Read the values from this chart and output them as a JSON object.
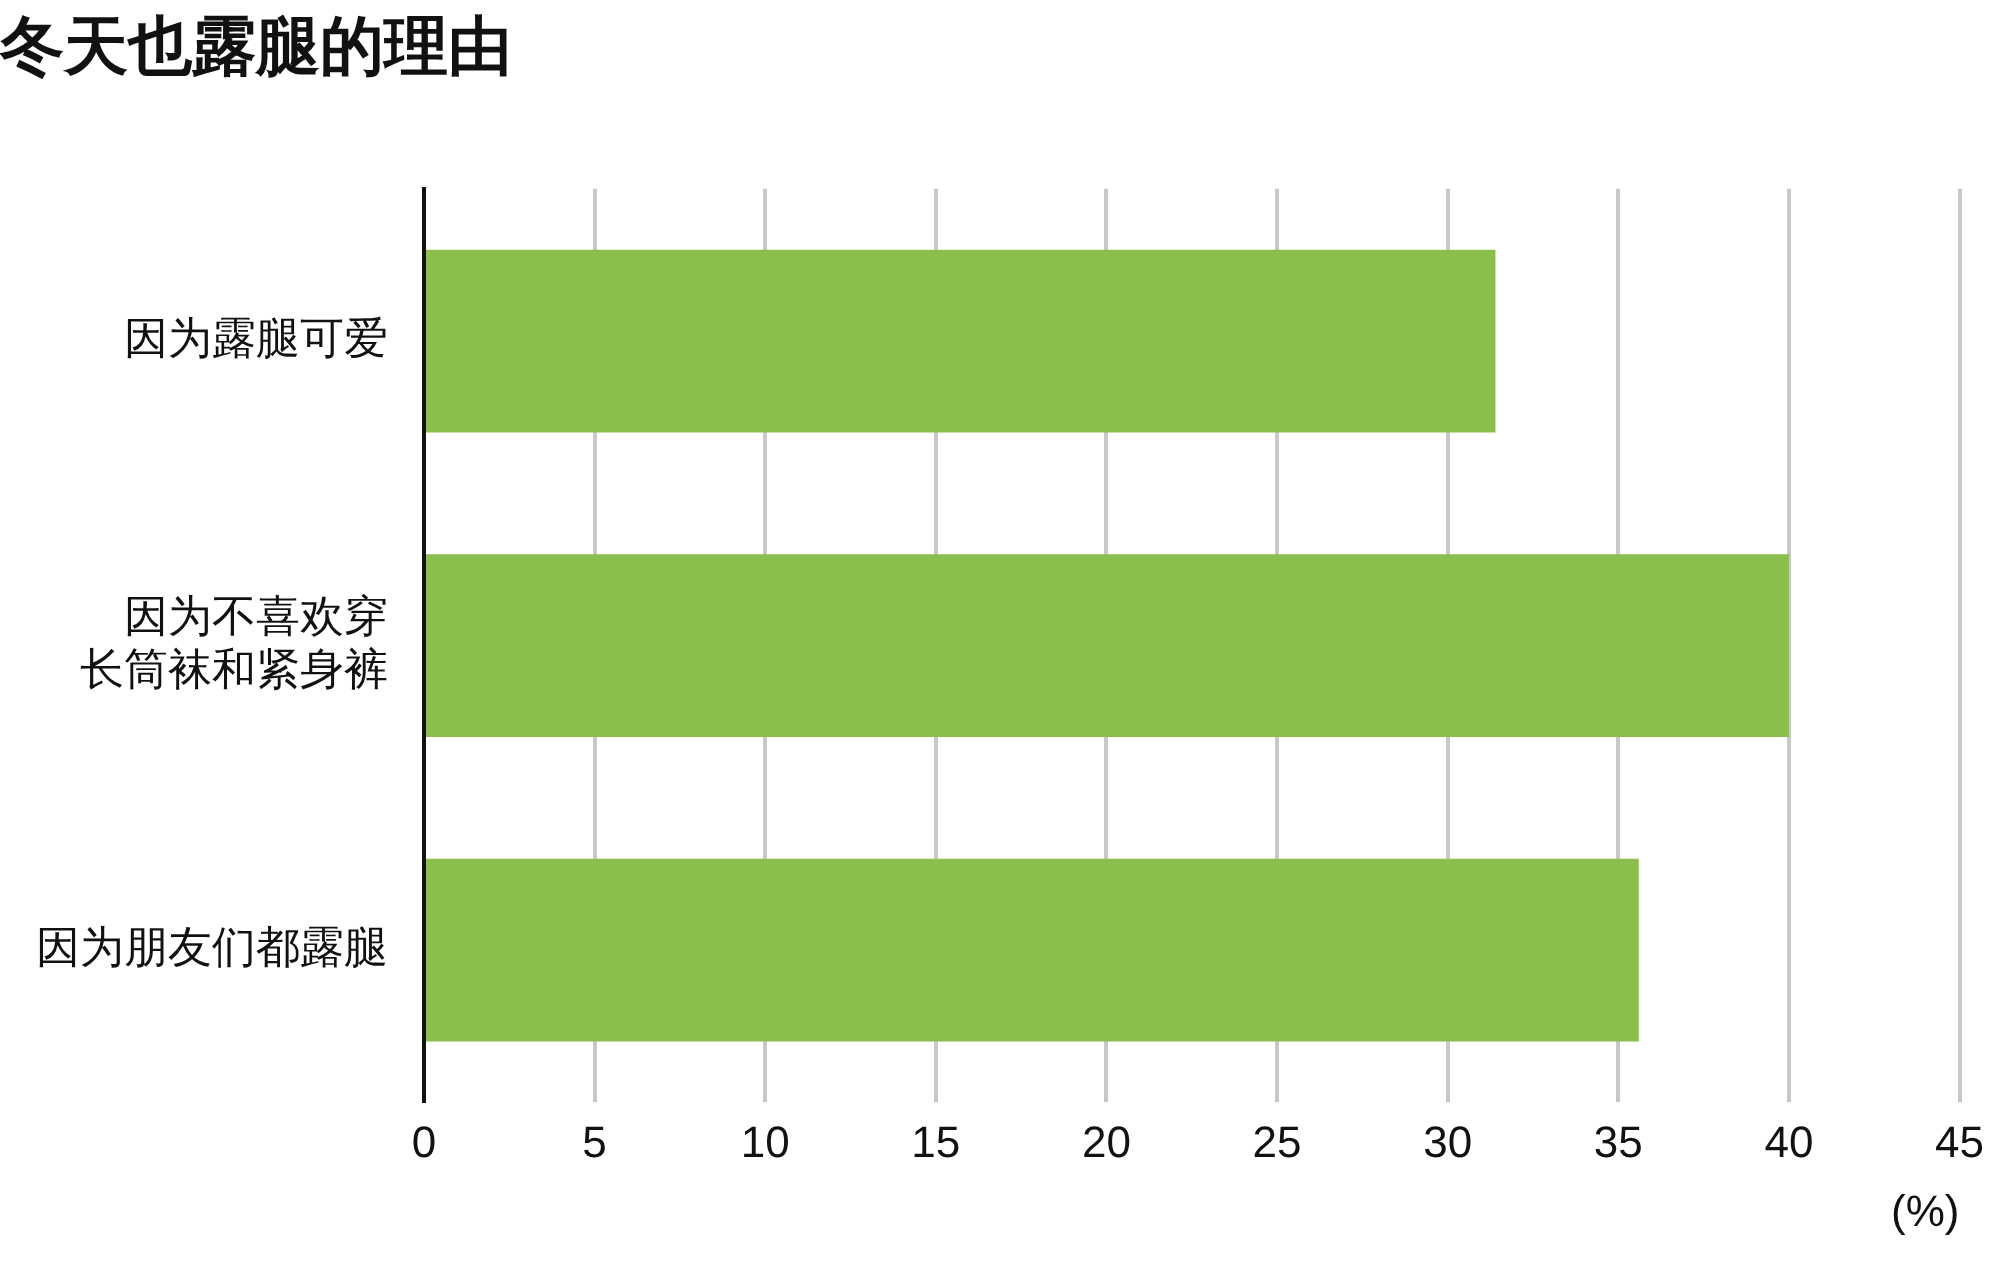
{
  "chart_data": {
    "type": "bar",
    "orientation": "horizontal",
    "title": "冬天也露腿的理由",
    "categories": [
      "因为露腿可爱",
      "因为不喜欢穿长筒袜和紧身裤",
      "因为朋友们都露腿"
    ],
    "values": [
      31.4,
      40,
      35.6
    ],
    "color": "#8bbf4d",
    "xlim": [
      0,
      45
    ],
    "xticks": [
      0,
      5,
      10,
      15,
      20,
      25,
      30,
      35,
      40,
      45
    ],
    "xlabel": "(%)",
    "grid": "x",
    "legend": false
  }
}
